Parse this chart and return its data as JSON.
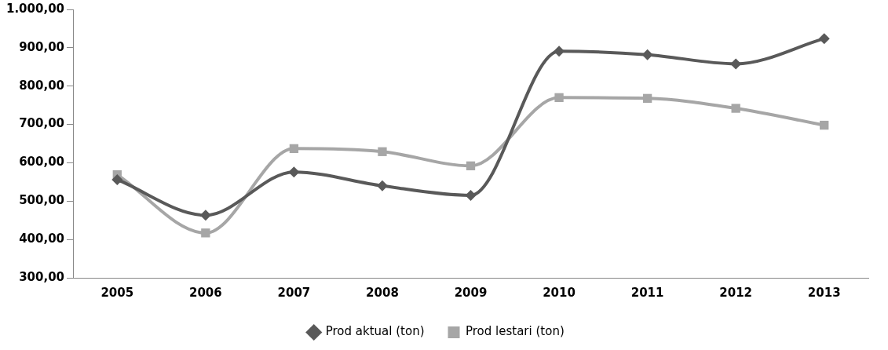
{
  "chart_data": {
    "type": "line",
    "categories": [
      "2005",
      "2006",
      "2007",
      "2008",
      "2009",
      "2010",
      "2011",
      "2012",
      "2013"
    ],
    "series": [
      {
        "name": "Prod aktual (ton)",
        "color": "#595959",
        "marker": "diamond",
        "values": [
          556,
          463,
          576,
          540,
          515,
          891,
          882,
          858,
          924
        ]
      },
      {
        "name": "Prod lestari (ton)",
        "color": "#a6a6a6",
        "marker": "square",
        "values": [
          569,
          417,
          637,
          629,
          592,
          770,
          768,
          742,
          698
        ]
      }
    ],
    "ylim": [
      300,
      1000
    ],
    "yticks": [
      {
        "value": 300,
        "label": "300,00"
      },
      {
        "value": 400,
        "label": "400,00"
      },
      {
        "value": 500,
        "label": "500,00"
      },
      {
        "value": 600,
        "label": "600,00"
      },
      {
        "value": 700,
        "label": "700,00"
      },
      {
        "value": 800,
        "label": "800,00"
      },
      {
        "value": 900,
        "label": "900,00"
      },
      {
        "value": 1000,
        "label": "1.000,00"
      }
    ],
    "grid": false,
    "legend": "bottom"
  }
}
